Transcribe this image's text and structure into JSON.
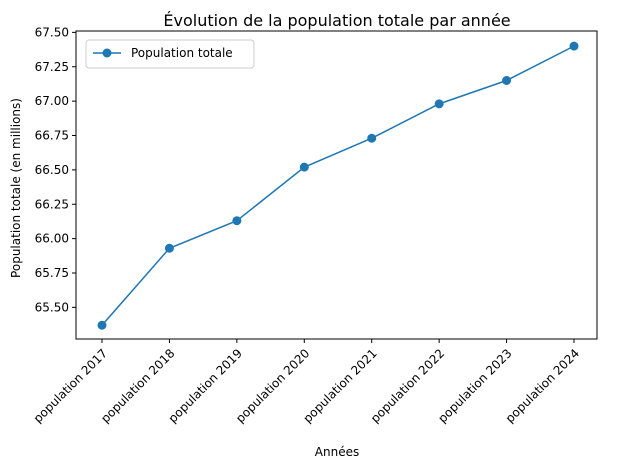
{
  "chart_data": {
    "type": "line",
    "title": "Évolution de la population totale par année",
    "xlabel": "Années",
    "ylabel": "Population totale (en millions)",
    "categories": [
      "population 2017",
      "population 2018",
      "population 2019",
      "population 2020",
      "population 2021",
      "population 2022",
      "population 2023",
      "population 2024"
    ],
    "series": [
      {
        "name": "Population totale",
        "values": [
          65.37,
          65.93,
          66.13,
          66.52,
          66.73,
          66.98,
          67.15,
          67.4
        ],
        "color": "#1f77b4",
        "marker": "circle"
      }
    ],
    "ylim": [
      65.27,
      67.51
    ],
    "yticks": [
      65.5,
      65.75,
      66.0,
      66.25,
      66.5,
      66.75,
      67.0,
      67.25,
      67.5
    ],
    "ytick_labels": [
      "65.50",
      "65.75",
      "66.00",
      "66.25",
      "66.50",
      "66.75",
      "67.00",
      "67.25",
      "67.50"
    ],
    "grid": false,
    "legend_position": "top-left"
  }
}
